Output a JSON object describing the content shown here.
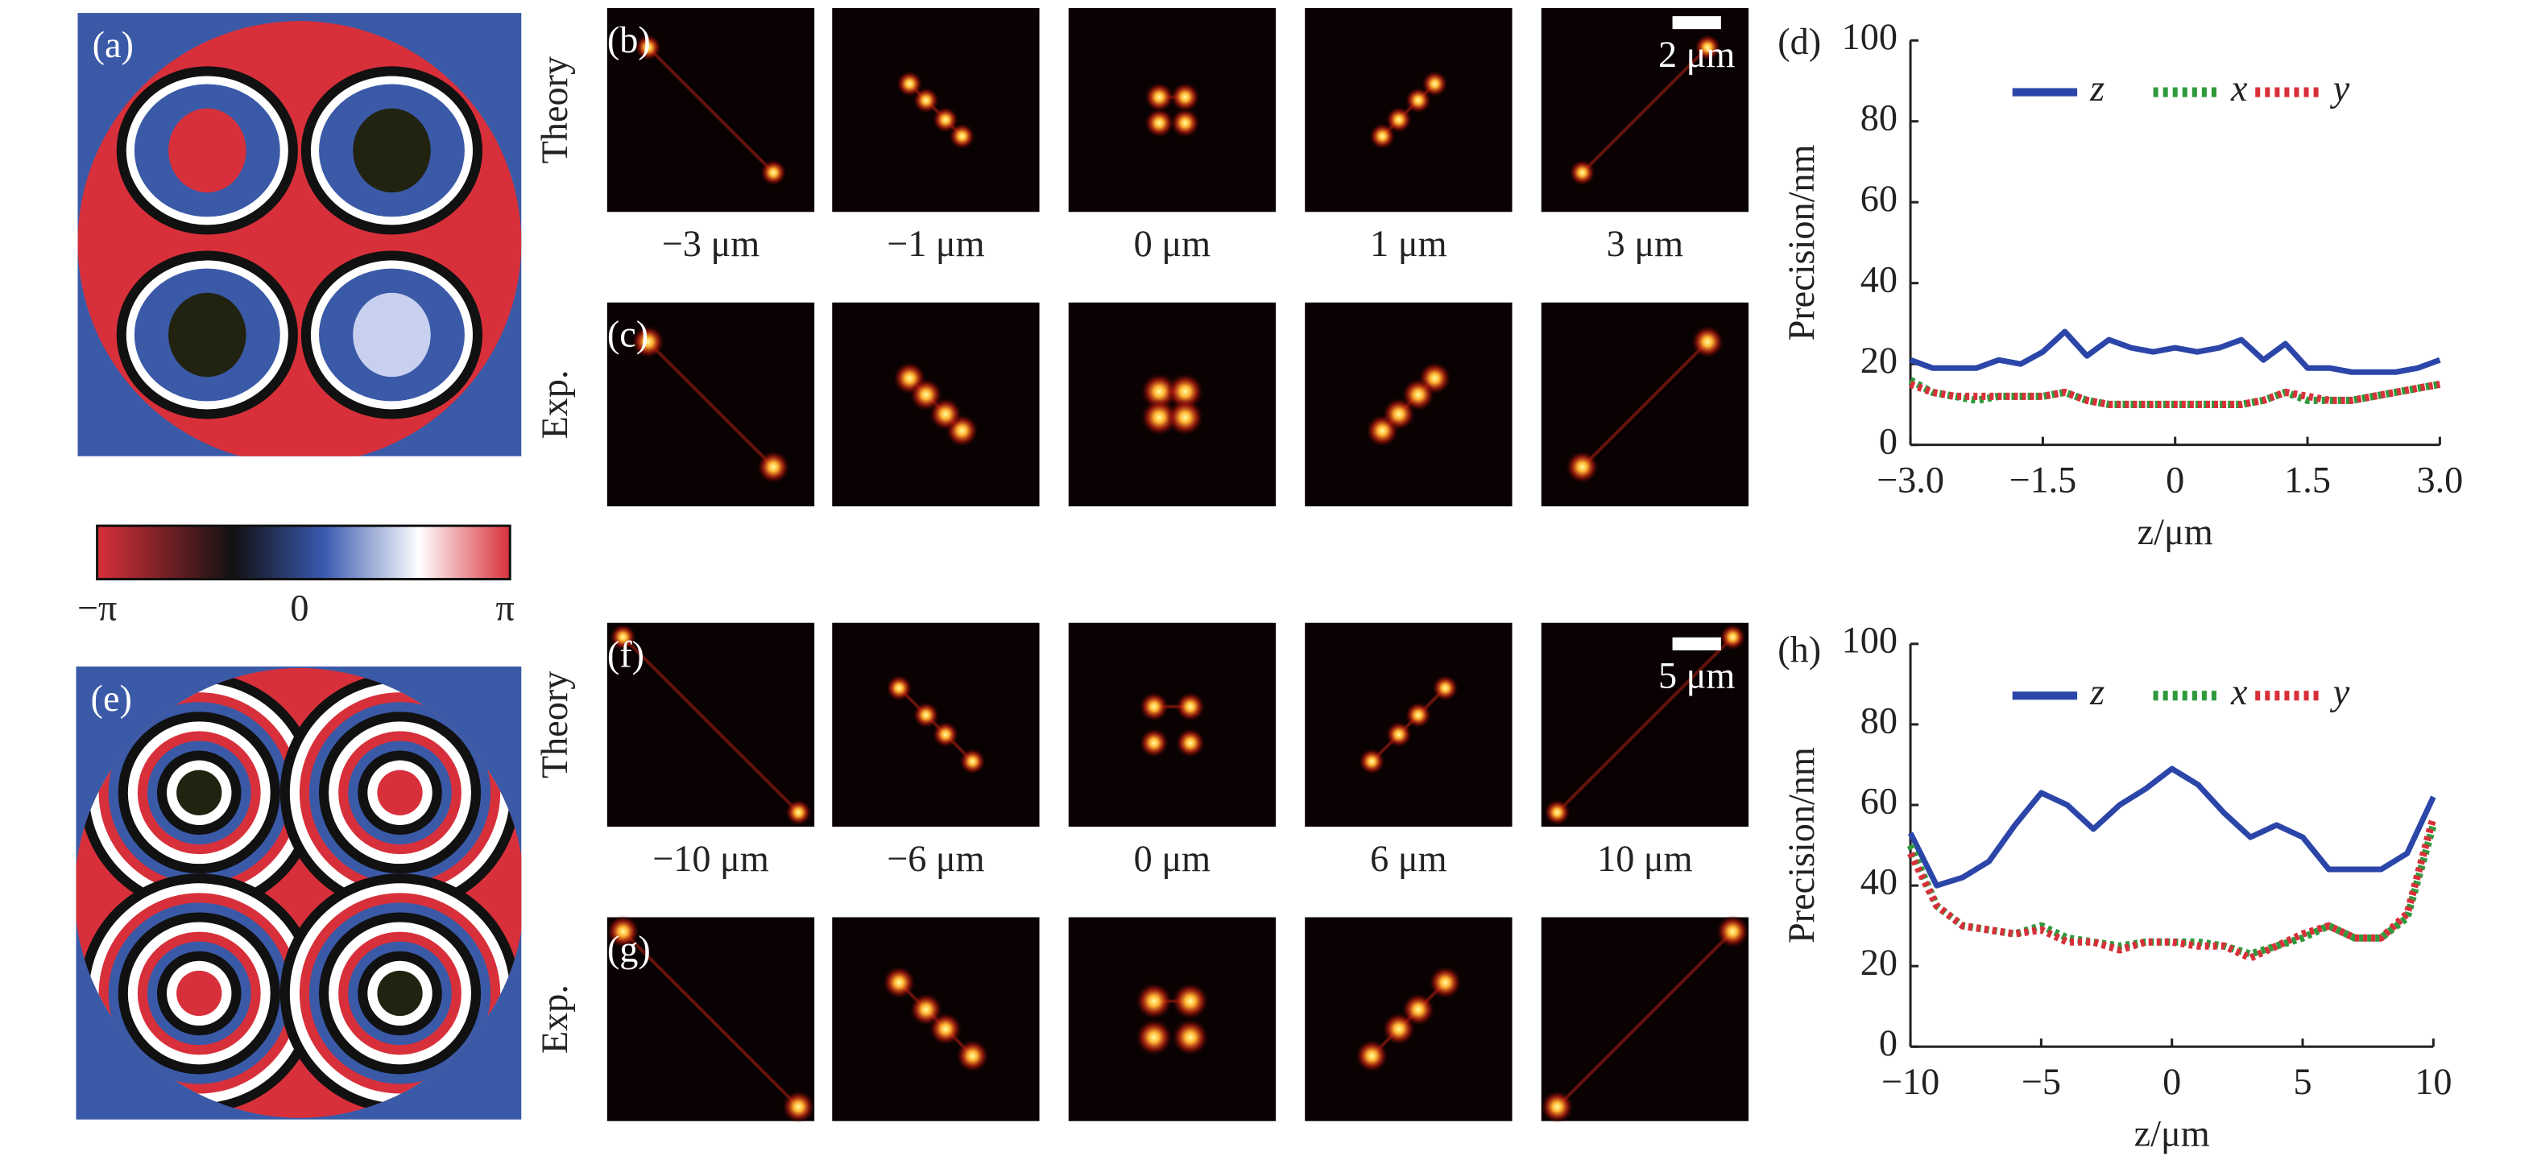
{
  "phase_masks": [
    {
      "label": "(a)"
    },
    {
      "label": "(e)"
    }
  ],
  "colorbar": {
    "ticks": [
      "−π",
      "0",
      "π"
    ]
  },
  "psf_groups": [
    {
      "theory_label": "(b)",
      "exp_label": "(c)",
      "row_labels": [
        "Theory",
        "Exp."
      ],
      "scale_bar": "2 μm",
      "positions": [
        "−3 μm",
        "−1 μm",
        "0 μm",
        "1 μm",
        "3 μm"
      ]
    },
    {
      "theory_label": "(f)",
      "exp_label": "(g)",
      "row_labels": [
        "Theory",
        "Exp."
      ],
      "scale_bar": "5 μm",
      "positions": [
        "−10 μm",
        "−6 μm",
        "0 μm",
        "6 μm",
        "10 μm"
      ]
    }
  ],
  "chart_data": [
    {
      "type": "line",
      "label": "(d)",
      "xlabel": "z/μm",
      "ylabel": "Precision/nm",
      "x": [
        -3,
        -2.75,
        -2.5,
        -2.25,
        -2,
        -1.75,
        -1.5,
        -1.25,
        -1,
        -0.75,
        -0.5,
        -0.25,
        0,
        0.25,
        0.5,
        0.75,
        1,
        1.25,
        1.5,
        1.75,
        2,
        2.25,
        2.5,
        2.75,
        3
      ],
      "xlim": [
        -3,
        3
      ],
      "xticks": [
        {
          "value": -3,
          "label": "−3.0"
        },
        {
          "value": -1.5,
          "label": "−1.5"
        },
        0,
        1.5,
        {
          "value": 3,
          "label": "3.0"
        }
      ],
      "ylim": [
        0,
        100
      ],
      "yticks": [
        0,
        20,
        40,
        60,
        80,
        100
      ],
      "series": [
        {
          "name": "z",
          "color": "#2b46a8",
          "style": "solid",
          "values": [
            21,
            19,
            19,
            19,
            21,
            20,
            23,
            28,
            22,
            26,
            24,
            23,
            24,
            23,
            24,
            26,
            21,
            25,
            19,
            19,
            18,
            18,
            18,
            19,
            21
          ]
        },
        {
          "name": "x",
          "color": "#2f9a3c",
          "style": "dotted",
          "values": [
            16,
            13,
            12,
            11,
            12,
            12,
            12,
            13,
            11,
            10,
            10,
            10,
            10,
            10,
            10,
            10,
            11,
            13,
            11,
            11,
            11,
            12,
            13,
            14,
            15
          ]
        },
        {
          "name": "y",
          "color": "#d8303a",
          "style": "dotted",
          "values": [
            15,
            13,
            12,
            12,
            12,
            12,
            12,
            13,
            11,
            10,
            10,
            10,
            10,
            10,
            10,
            10,
            11,
            13,
            12,
            11,
            11,
            12,
            13,
            14,
            15
          ]
        }
      ]
    },
    {
      "type": "line",
      "label": "(h)",
      "xlabel": "z/μm",
      "ylabel": "Precision/nm",
      "x": [
        -10,
        -9,
        -8,
        -7,
        -6,
        -5,
        -4,
        -3,
        -2,
        -1,
        0,
        1,
        2,
        3,
        4,
        5,
        6,
        7,
        8,
        9,
        10
      ],
      "xlim": [
        -10,
        10
      ],
      "xticks": [
        {
          "value": -10,
          "label": "−10"
        },
        {
          "value": -5,
          "label": "−5"
        },
        0,
        5,
        10
      ],
      "ylim": [
        0,
        100
      ],
      "yticks": [
        0,
        20,
        40,
        60,
        80,
        100
      ],
      "series": [
        {
          "name": "z",
          "color": "#2b46a8",
          "style": "solid",
          "values": [
            53,
            40,
            42,
            46,
            55,
            63,
            60,
            54,
            60,
            64,
            69,
            65,
            58,
            52,
            55,
            52,
            44,
            44,
            44,
            48,
            62
          ]
        },
        {
          "name": "x",
          "color": "#2f9a3c",
          "style": "dotted",
          "values": [
            50,
            35,
            30,
            29,
            28,
            30,
            27,
            26,
            25,
            26,
            26,
            26,
            25,
            23,
            25,
            27,
            30,
            27,
            27,
            32,
            55
          ]
        },
        {
          "name": "y",
          "color": "#d8303a",
          "style": "dotted",
          "values": [
            48,
            35,
            30,
            29,
            28,
            29,
            26,
            26,
            24,
            26,
            26,
            25,
            25,
            22,
            25,
            28,
            30,
            27,
            27,
            33,
            57
          ]
        }
      ]
    }
  ]
}
